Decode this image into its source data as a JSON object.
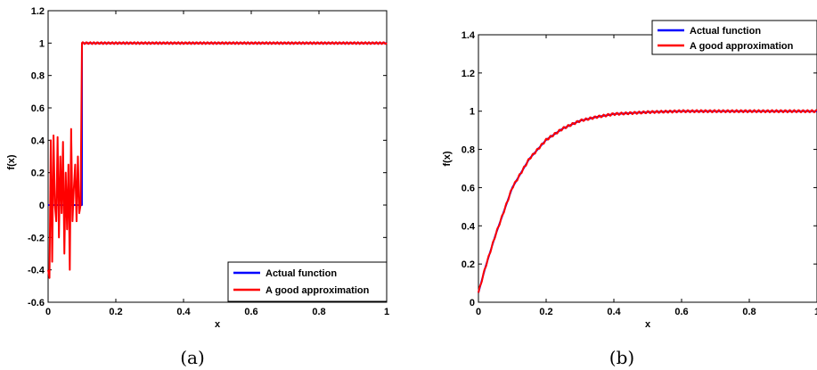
{
  "chart_data": [
    {
      "panel": "(a)",
      "type": "line",
      "caption": "(a)",
      "xlabel": "x",
      "ylabel": "f(x)",
      "xlim": [
        0,
        1
      ],
      "ylim": [
        -0.6,
        1.2
      ],
      "xticks": [
        "0",
        "0.2",
        "0.4",
        "0.6",
        "0.8",
        "1"
      ],
      "yticks": [
        "-0.6",
        "-0.4",
        "-0.2",
        "0",
        "0.2",
        "0.4",
        "0.6",
        "0.8",
        "1",
        "1.2"
      ],
      "grid": false,
      "legend_position": "bottom-right",
      "series": [
        {
          "name": "Actual function",
          "color": "#0000ff",
          "x": [
            0,
            0.0999,
            0.1,
            1
          ],
          "y": [
            0,
            0,
            1,
            1
          ]
        },
        {
          "name": "A good approximation",
          "color": "#ff0000",
          "x": [
            0,
            0.004,
            0.008,
            0.012,
            0.016,
            0.02,
            0.024,
            0.028,
            0.032,
            0.036,
            0.04,
            0.044,
            0.048,
            0.052,
            0.056,
            0.06,
            0.064,
            0.068,
            0.072,
            0.076,
            0.08,
            0.084,
            0.088,
            0.092,
            0.096,
            0.1
          ],
          "y": [
            -0.4,
            -0.45,
            0.4,
            -0.35,
            0.43,
            0.0,
            -0.1,
            0.42,
            -0.2,
            0.3,
            -0.05,
            0.39,
            -0.3,
            0.2,
            -0.15,
            0.25,
            -0.4,
            0.47,
            -0.1,
            0.1,
            0.25,
            -0.1,
            0.3,
            -0.05,
            0.0,
            1.0
          ]
        }
      ]
    },
    {
      "panel": "(b)",
      "type": "line",
      "caption": "(b)",
      "xlabel": "x",
      "ylabel": "f(x)",
      "xlim": [
        0,
        1
      ],
      "ylim": [
        0,
        1.4
      ],
      "xticks": [
        "0",
        "0.2",
        "0.4",
        "0.6",
        "0.8",
        "1"
      ],
      "yticks": [
        "0",
        "0.2",
        "0.4",
        "0.6",
        "0.8",
        "1",
        "1.2",
        "1.4"
      ],
      "grid": false,
      "legend_position": "top-right",
      "series": [
        {
          "name": "Actual function",
          "color": "#0000ff",
          "x": [
            0,
            0.02,
            0.05,
            0.08,
            0.1,
            0.15,
            0.2,
            0.25,
            0.3,
            0.35,
            0.4,
            0.5,
            0.6,
            0.7,
            0.8,
            0.9,
            1.0
          ],
          "y": [
            0.05,
            0.18,
            0.35,
            0.5,
            0.6,
            0.75,
            0.85,
            0.91,
            0.95,
            0.97,
            0.985,
            0.995,
            1.0,
            1.0,
            1.0,
            1.0,
            1.0
          ]
        },
        {
          "name": "A good approximation",
          "color": "#ff0000",
          "x": [
            0,
            0.02,
            0.05,
            0.08,
            0.1,
            0.15,
            0.2,
            0.25,
            0.3,
            0.35,
            0.4,
            0.5,
            0.6,
            0.7,
            0.8,
            0.9,
            1.0
          ],
          "y": [
            0.05,
            0.18,
            0.35,
            0.5,
            0.6,
            0.75,
            0.85,
            0.91,
            0.95,
            0.97,
            0.985,
            0.995,
            1.0,
            1.0,
            1.0,
            1.0,
            1.0
          ],
          "ripple_amplitude": 0.006
        }
      ]
    }
  ]
}
